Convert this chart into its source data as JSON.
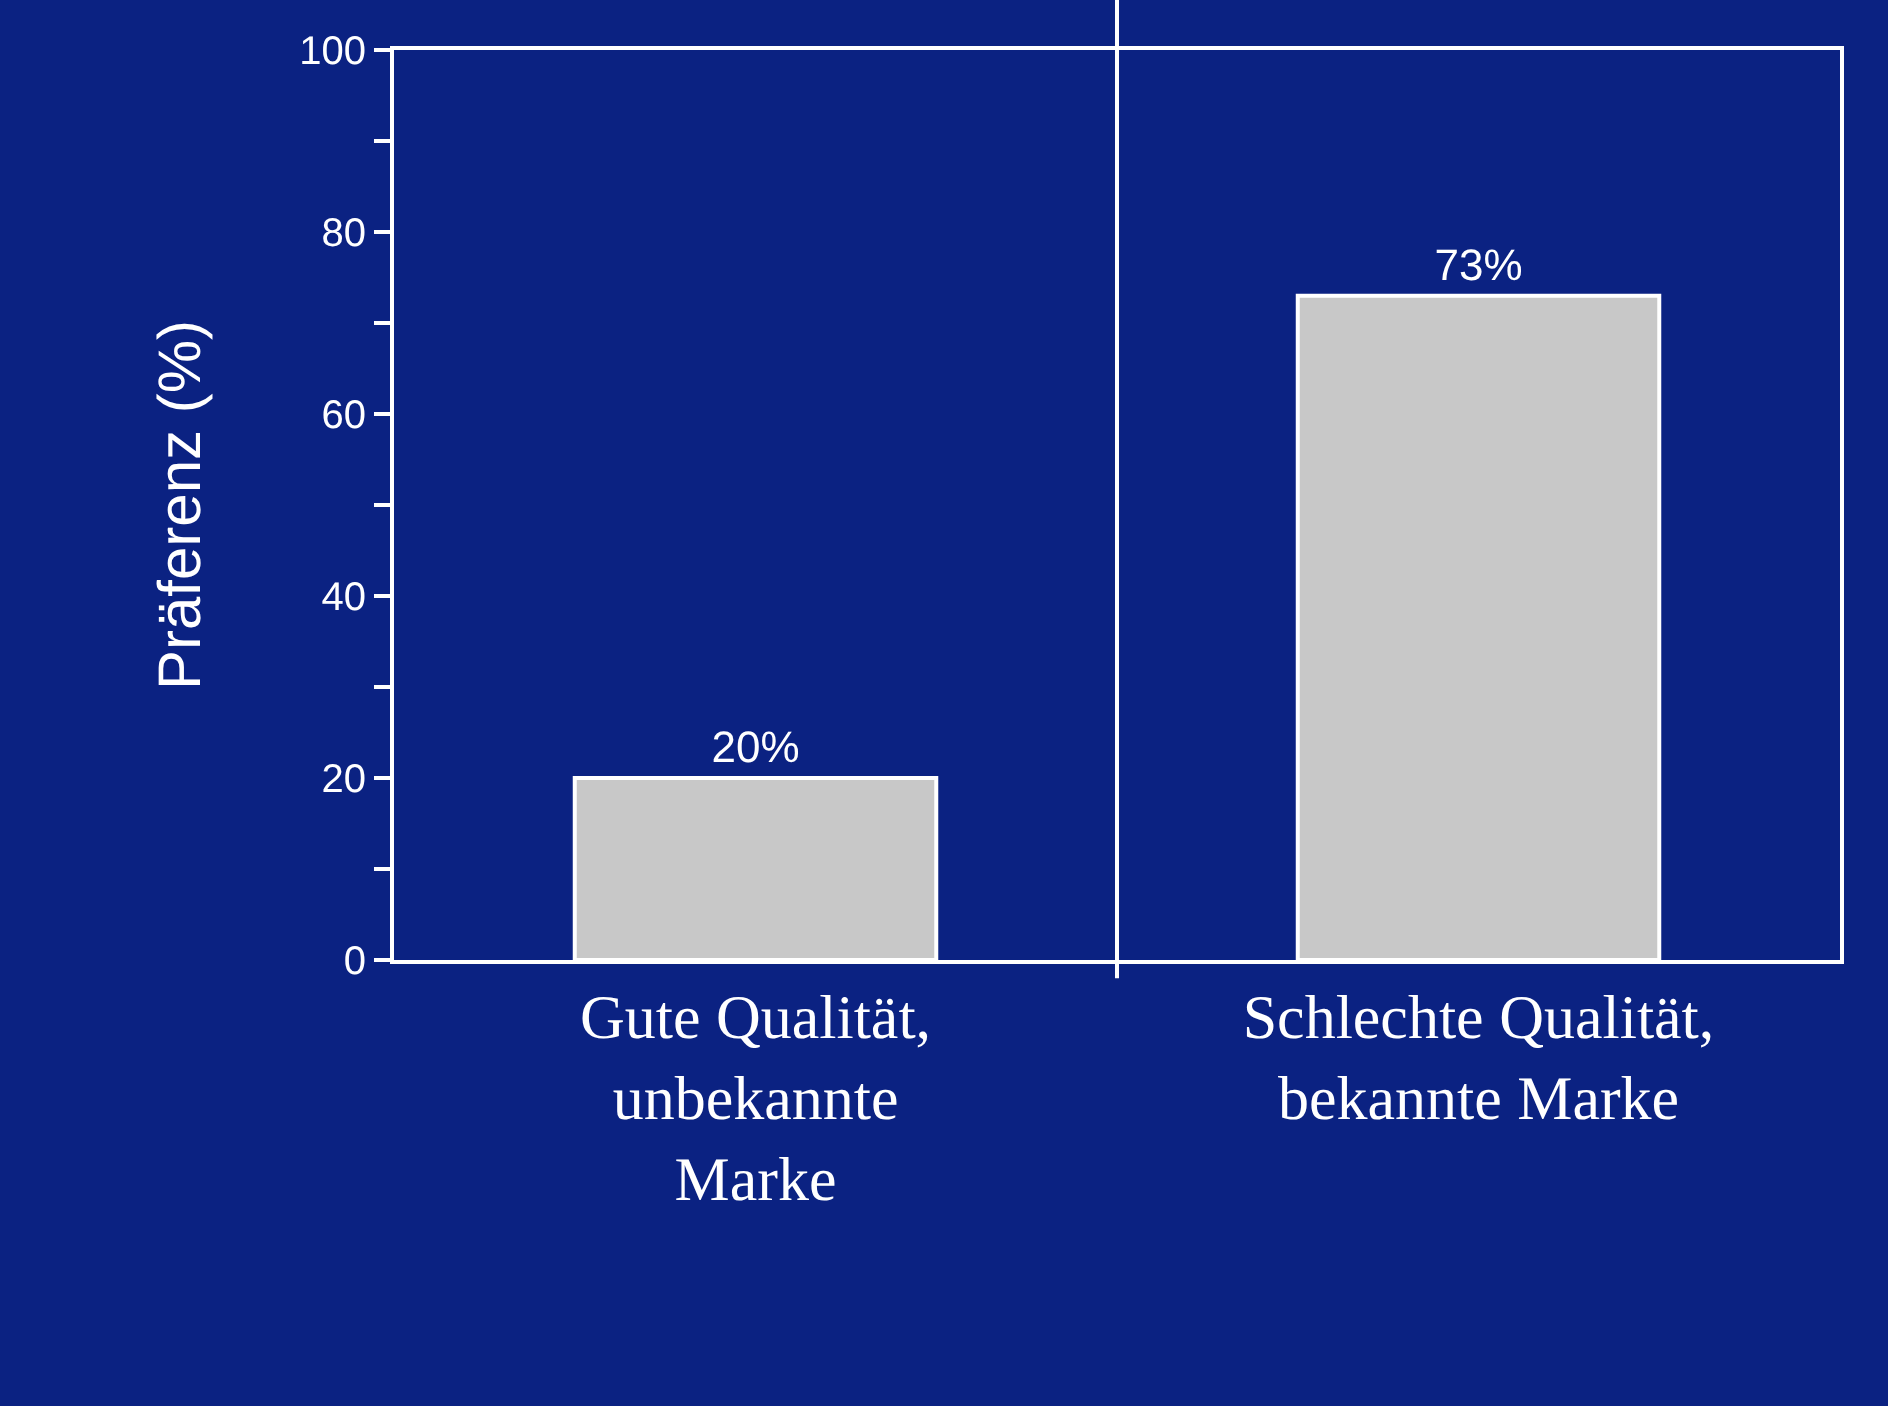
{
  "chart_data": {
    "type": "bar",
    "ylabel": "Präferenz (%)",
    "categories": [
      "Gute Qualität, unbekannte Marke",
      "Schlechte Qualität, bekannte Marke"
    ],
    "values": [
      20,
      73
    ],
    "value_labels": [
      "20%",
      "73%"
    ],
    "color": "#c8c8c8",
    "ylim": [
      0,
      100
    ],
    "yticks": [
      0,
      {
        "value": 10,
        "label": null
      },
      20,
      {
        "value": 30,
        "label": null
      },
      40,
      {
        "value": 50,
        "label": null
      },
      60,
      {
        "value": 70,
        "label": null
      },
      80,
      {
        "value": 90,
        "label": null
      },
      100
    ],
    "grid": "x",
    "legend": false
  }
}
